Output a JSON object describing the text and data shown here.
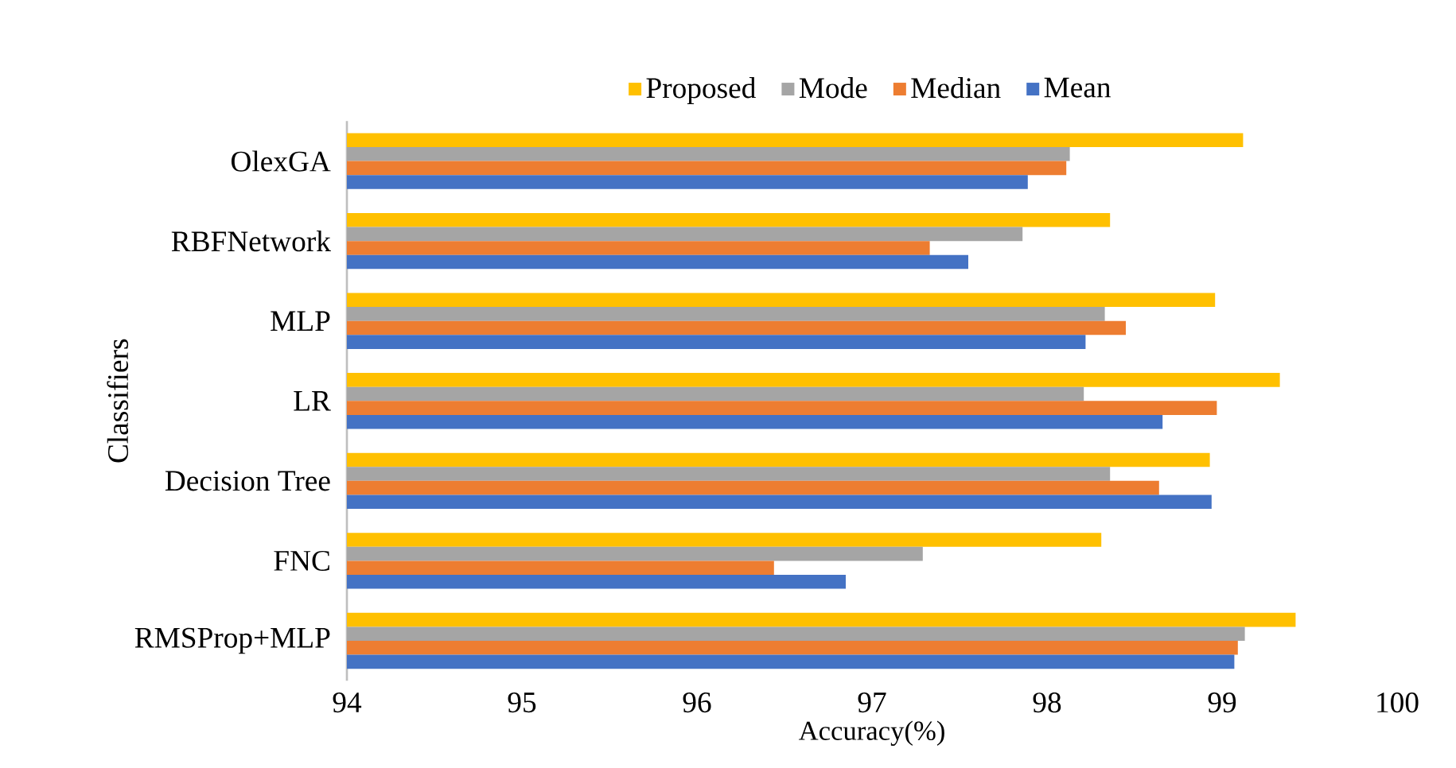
{
  "chart_data": {
    "type": "bar",
    "orientation": "horizontal",
    "xlabel": "Accuracy(%)",
    "ylabel": "Classifiers",
    "categories": [
      "OlexGA",
      "RBFNetwork",
      "MLP",
      "LR",
      "Decision Tree",
      "FNC",
      "RMSProp+MLP"
    ],
    "series": [
      {
        "name": "Proposed",
        "color": "#ffc000",
        "values": [
          99.12,
          98.36,
          98.96,
          99.33,
          98.93,
          98.31,
          99.42
        ]
      },
      {
        "name": "Mode",
        "color": "#a5a5a5",
        "values": [
          98.13,
          97.86,
          98.33,
          98.21,
          98.36,
          97.29,
          99.13
        ]
      },
      {
        "name": "Median",
        "color": "#ed7d31",
        "values": [
          98.11,
          97.33,
          98.45,
          98.97,
          98.64,
          96.44,
          99.09
        ]
      },
      {
        "name": "Mean",
        "color": "#4472c4",
        "values": [
          97.89,
          97.55,
          98.22,
          98.66,
          98.94,
          96.85,
          99.07
        ]
      }
    ],
    "xlim": [
      94,
      100
    ],
    "xticks": [
      94,
      95,
      96,
      97,
      98,
      99,
      100
    ],
    "grid": false,
    "legend": "top"
  }
}
